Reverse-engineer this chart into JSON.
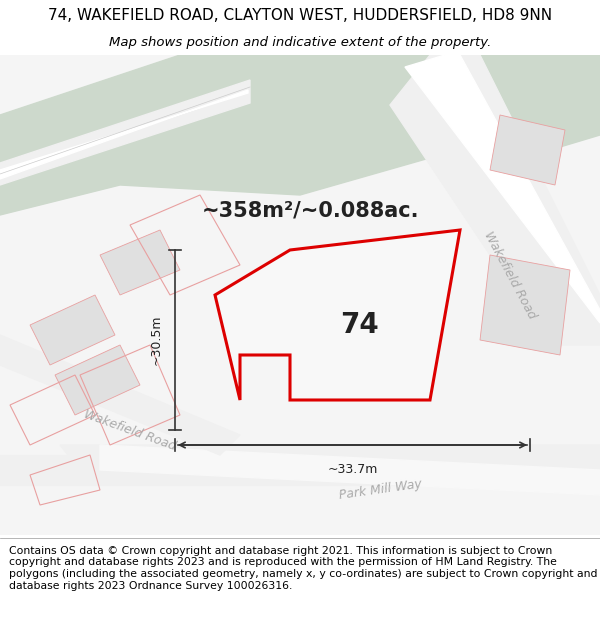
{
  "title_line1": "74, WAKEFIELD ROAD, CLAYTON WEST, HUDDERSFIELD, HD8 9NN",
  "title_line2": "Map shows position and indicative extent of the property.",
  "footer_text": "Contains OS data © Crown copyright and database right 2021. This information is subject to Crown copyright and database rights 2023 and is reproduced with the permission of HM Land Registry. The polygons (including the associated geometry, namely x, y co-ordinates) are subject to Crown copyright and database rights 2023 Ordnance Survey 100026316.",
  "area_text": "~358m²/~0.088ac.",
  "label_74": "74",
  "dim_horizontal": "~33.7m",
  "dim_vertical": "~30.5m",
  "road_label_wakefield1": "Wakefield Road",
  "road_label_wakefield2": "Wakefield Road",
  "road_label_parkmill": "Park Mill Way",
  "bg_color": "#ffffff",
  "map_bg": "#f5f5f5",
  "green_color": "#cdd9cc",
  "road_fill": "#f0f0f0",
  "road_center": "#ffffff",
  "plot_outline_color": "#dd0000",
  "neighbor_outline_color": "#e8a0a0",
  "gray_block_color": "#e0e0e0",
  "title_fontsize": 11,
  "subtitle_fontsize": 9.5,
  "footer_fontsize": 7.8,
  "area_fontsize": 15,
  "label_fontsize": 20,
  "dim_fontsize": 9,
  "road_fontsize": 9
}
